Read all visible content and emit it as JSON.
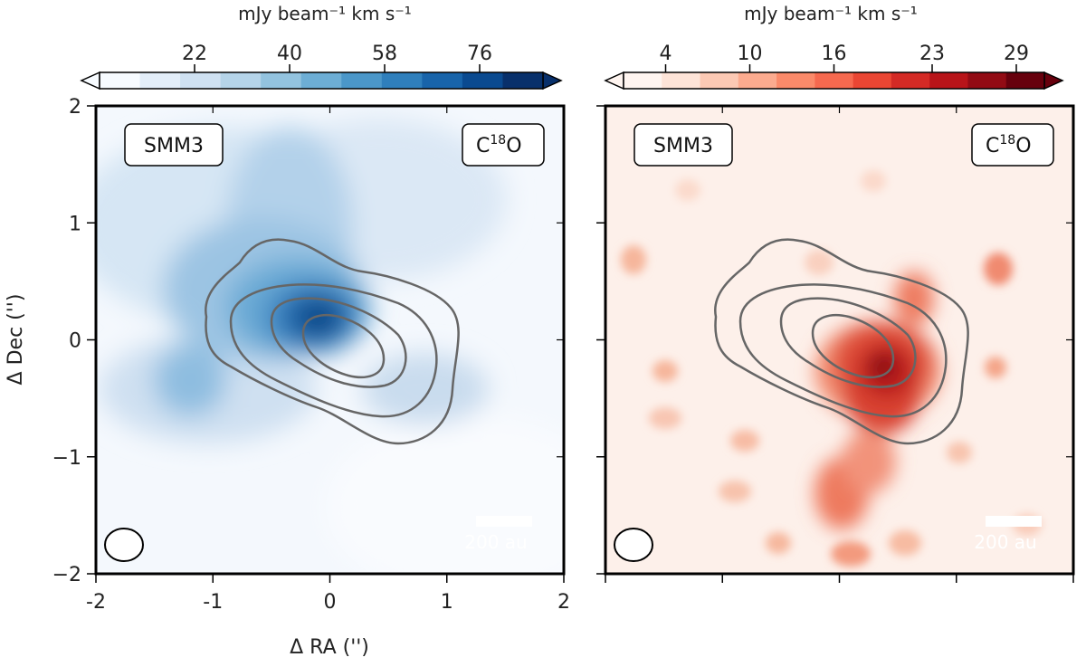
{
  "chart_data": [
    {
      "type": "heatmap",
      "panel": "left",
      "colormap": "Blues",
      "colorbar": {
        "label": "mJy beam⁻¹ km s⁻¹",
        "ticks": [
          "22",
          "40",
          "58",
          "76"
        ],
        "tick_values": [
          22,
          40,
          58,
          76
        ],
        "range": [
          4,
          88
        ],
        "colors": [
          "#f7fbff",
          "#e3eef9",
          "#cfe1f2",
          "#b5d4e9",
          "#93c3df",
          "#6daed5",
          "#4b97c9",
          "#2f7fbc",
          "#1864aa",
          "#0a4a90",
          "#08306b"
        ]
      },
      "source_label": "SMM3",
      "molecule_label_main": "C",
      "molecule_label_sup": "18",
      "molecule_label_end": "O",
      "xlabel": "Δ RA ('')",
      "ylabel": "Δ Dec ('')",
      "xlim": [
        -2,
        2
      ],
      "ylim": [
        -2,
        2
      ],
      "xticks": [
        "-2",
        "-1",
        "0",
        "1",
        "2"
      ],
      "yticks": [
        "2",
        "1",
        "0",
        "−1",
        "−2"
      ],
      "scale_bar_label": "200 au",
      "emission_peak": {
        "x": -0.05,
        "y": 0.15,
        "value": 88
      },
      "contour_center": {
        "x": 0.1,
        "y": -0.05
      }
    },
    {
      "type": "heatmap",
      "panel": "right",
      "colormap": "Reds",
      "colorbar": {
        "label": "mJy beam⁻¹ km s⁻¹",
        "ticks": [
          "4",
          "10",
          "16",
          "23",
          "29"
        ],
        "tick_values": [
          4,
          10,
          16,
          23,
          29
        ],
        "range": [
          1,
          31
        ],
        "colors": [
          "#fff5f0",
          "#fee4d8",
          "#fcc9b4",
          "#fcab8f",
          "#fb8a6a",
          "#f6694f",
          "#ea4633",
          "#d42a25",
          "#b81419",
          "#920b14",
          "#67000d"
        ]
      },
      "source_label": "SMM3",
      "molecule_label_main": "C",
      "molecule_label_sup": "18",
      "molecule_label_end": "O",
      "xlim": [
        -2,
        2
      ],
      "ylim": [
        -2,
        2
      ],
      "scale_bar_label": "200 au",
      "emission_peak": {
        "x": 0.45,
        "y": -0.2,
        "value": 31
      },
      "contour_center": {
        "x": 0.1,
        "y": -0.05
      }
    }
  ]
}
